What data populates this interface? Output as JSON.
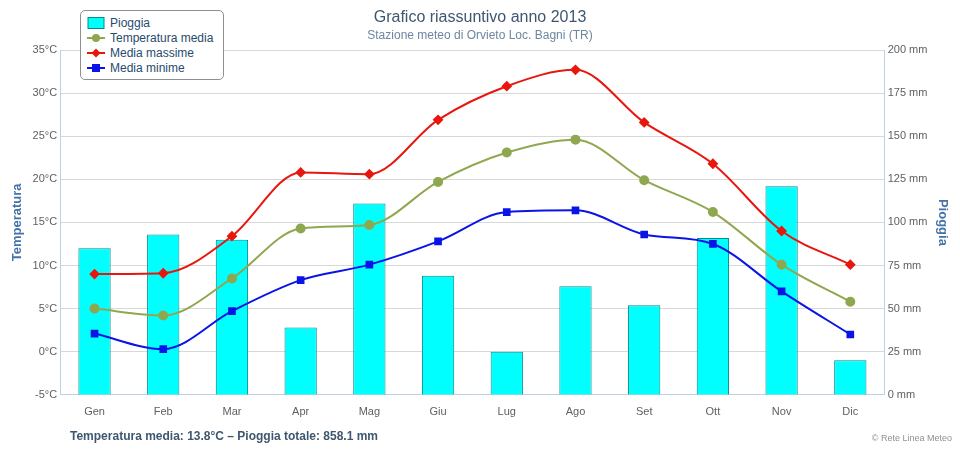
{
  "chart_data": {
    "type": "line",
    "title": "Grafico riassuntivo anno 2013",
    "subtitle": "Stazione meteo di Orvieto Loc. Bagni (TR)",
    "categories": [
      "Gen",
      "Feb",
      "Mar",
      "Apr",
      "Mag",
      "Giu",
      "Lug",
      "Ago",
      "Set",
      "Ott",
      "Nov",
      "Dic"
    ],
    "ylabel": "Temperatura",
    "y2label": "Pioggia",
    "ylim": [
      -5,
      35
    ],
    "yticks": [
      {
        "value": -5,
        "label": "-5°C"
      },
      {
        "value": 0,
        "label": "0°C"
      },
      {
        "value": 5,
        "label": "5°C"
      },
      {
        "value": 10,
        "label": "10°C"
      },
      {
        "value": 15,
        "label": "15°C"
      },
      {
        "value": 20,
        "label": "20°C"
      },
      {
        "value": 25,
        "label": "25°C"
      },
      {
        "value": 30,
        "label": "30°C"
      },
      {
        "value": 35,
        "label": "35°C"
      }
    ],
    "y2lim": [
      0,
      200
    ],
    "y2ticks": [
      {
        "value": 0,
        "label": "0 mm"
      },
      {
        "value": 25,
        "label": "25 mm"
      },
      {
        "value": 50,
        "label": "50 mm"
      },
      {
        "value": 75,
        "label": "75 mm"
      },
      {
        "value": 100,
        "label": "100 mm"
      },
      {
        "value": 125,
        "label": "125 mm"
      },
      {
        "value": 150,
        "label": "150 mm"
      },
      {
        "value": 175,
        "label": "175 mm"
      },
      {
        "value": 200,
        "label": "200 mm"
      }
    ],
    "grid": true,
    "legend": "top-left",
    "series": [
      {
        "name": "Pioggia",
        "type": "bar",
        "axis": "y2",
        "color": "#00ffff",
        "values": [
          85,
          93,
          90,
          39,
          111,
          69,
          25,
          63,
          52,
          91,
          121,
          20
        ]
      },
      {
        "name": "Temperatura media",
        "type": "line",
        "color": "#8fa84f",
        "marker": "circle",
        "values": [
          5.0,
          4.2,
          8.5,
          14.3,
          14.7,
          19.7,
          23.1,
          24.6,
          19.9,
          16.2,
          10.1,
          5.8
        ]
      },
      {
        "name": "Media massime",
        "type": "line",
        "color": "#e8170e",
        "marker": "diamond",
        "values": [
          9.0,
          9.1,
          13.4,
          20.8,
          20.6,
          26.9,
          30.8,
          32.7,
          26.6,
          21.8,
          14.0,
          10.1
        ]
      },
      {
        "name": "Media minime",
        "type": "line",
        "color": "#0a14e6",
        "marker": "square",
        "values": [
          2.1,
          0.3,
          4.7,
          8.3,
          10.1,
          12.8,
          16.2,
          16.4,
          13.6,
          12.5,
          7.0,
          2.0
        ]
      }
    ],
    "annotations": [
      "Temperatura media: 13.8°C – Pioggia totale: 858.1 mm",
      "© Rete Linea Meteo"
    ]
  }
}
